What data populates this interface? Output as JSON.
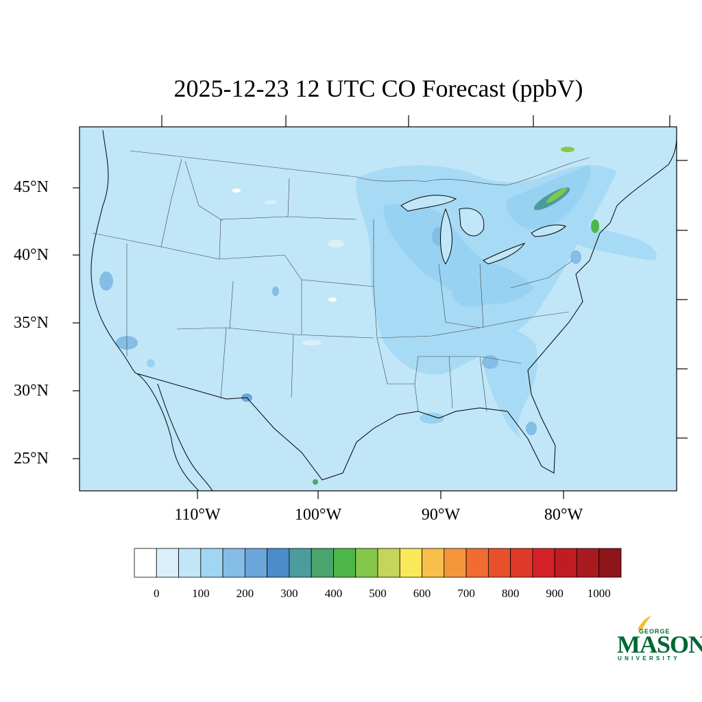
{
  "title": "2025-12-23 12 UTC CO Forecast (ppbV)",
  "map": {
    "lat_labels": [
      "45°N",
      "40°N",
      "35°N",
      "30°N",
      "25°N"
    ],
    "lon_labels": [
      "110°W",
      "100°W",
      "90°W",
      "80°W"
    ],
    "background_color": "#c0e6f8"
  },
  "colorbar": {
    "labels": [
      "0",
      "100",
      "200",
      "300",
      "400",
      "500",
      "600",
      "700",
      "800",
      "900",
      "1000"
    ],
    "colors": [
      "#ffffff",
      "#dbeffb",
      "#c0e6f8",
      "#a0d6f4",
      "#84bde6",
      "#6aa6d9",
      "#4b8dcb",
      "#4c9c9e",
      "#49a46e",
      "#4cb648",
      "#86c64a",
      "#c4d55a",
      "#f9e85a",
      "#f8bf4a",
      "#f5963c",
      "#f16c30",
      "#e8502c",
      "#df3a29",
      "#d42128",
      "#bf1c24",
      "#a91a20",
      "#8e151a"
    ]
  },
  "logo": {
    "top": "GEORGE",
    "main": "MASON",
    "bottom": "UNIVERSITY"
  }
}
